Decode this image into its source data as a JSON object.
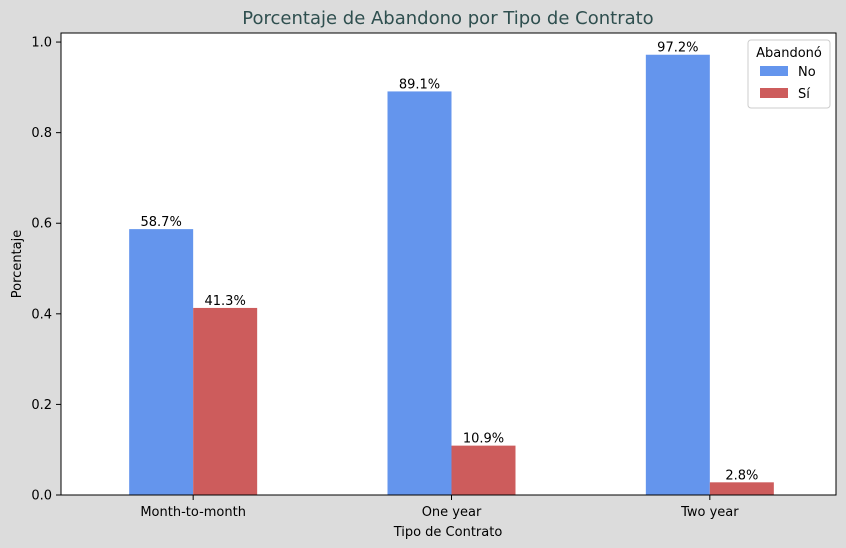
{
  "chart_data": {
    "type": "bar",
    "title": "Porcentaje de Abandono por Tipo de Contrato",
    "xlabel": "Tipo de Contrato",
    "ylabel": "Porcentaje",
    "categories": [
      "Month-to-month",
      "One year",
      "Two year"
    ],
    "series": [
      {
        "name": "No",
        "values": [
          0.587,
          0.891,
          0.972
        ],
        "labels": [
          "58.7%",
          "89.1%",
          "97.2%"
        ],
        "color": "#6495ed"
      },
      {
        "name": "Sí",
        "values": [
          0.413,
          0.109,
          0.028
        ],
        "labels": [
          "41.3%",
          "10.9%",
          "2.8%"
        ],
        "color": "#cd5c5c"
      }
    ],
    "yticks": [
      "0.0",
      "0.2",
      "0.4",
      "0.6",
      "0.8",
      "1.0"
    ],
    "ylim": [
      0,
      1.02
    ],
    "grid": false,
    "legend": {
      "title": "Abandonó",
      "placement": "top-right"
    },
    "background_color": "#dcdcdc",
    "plot_background_color": "#ffffff"
  }
}
